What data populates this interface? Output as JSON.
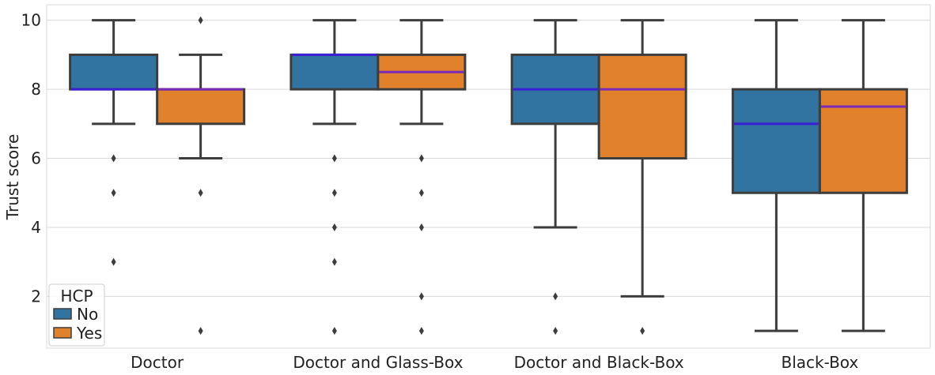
{
  "chart_data": {
    "type": "box",
    "ylabel": "Trust score",
    "xlabel": "",
    "ylim": [
      0.5,
      10.45
    ],
    "yticks": [
      2,
      4,
      6,
      8,
      10
    ],
    "grid": true,
    "categories": [
      "Doctor",
      "Doctor and Glass-Box",
      "Doctor and Black-Box",
      "Black-Box"
    ],
    "legend": {
      "title": "HCP",
      "position": "bottom-left"
    },
    "colors": {
      "No": "#3274a1",
      "Yes": "#e1812c",
      "median": "#3a1fd6",
      "median_yes": "#7a2ab8",
      "edge": "#3d3d3d",
      "grid": "#d9d9d9"
    },
    "series": [
      {
        "name": "No",
        "boxes": [
          {
            "q1": 8,
            "median": 8,
            "q3": 9,
            "whisker_low": 7,
            "whisker_high": 10,
            "outliers": [
              6,
              5,
              3
            ]
          },
          {
            "q1": 8,
            "median": 9,
            "q3": 9,
            "whisker_low": 7,
            "whisker_high": 10,
            "outliers": [
              6,
              5,
              4,
              3,
              1
            ]
          },
          {
            "q1": 7,
            "median": 8,
            "q3": 9,
            "whisker_low": 4,
            "whisker_high": 10,
            "outliers": [
              2,
              1
            ]
          },
          {
            "q1": 5,
            "median": 7,
            "q3": 8,
            "whisker_low": 1,
            "whisker_high": 10,
            "outliers": []
          }
        ]
      },
      {
        "name": "Yes",
        "boxes": [
          {
            "q1": 7,
            "median": 8,
            "q3": 8,
            "whisker_low": 6,
            "whisker_high": 9,
            "outliers": [
              10,
              5,
              1
            ]
          },
          {
            "q1": 8,
            "median": 8.5,
            "q3": 9,
            "whisker_low": 7,
            "whisker_high": 10,
            "outliers": [
              6,
              5,
              4,
              2,
              1
            ]
          },
          {
            "q1": 6,
            "median": 8,
            "q3": 9,
            "whisker_low": 2,
            "whisker_high": 10,
            "outliers": [
              1
            ]
          },
          {
            "q1": 5,
            "median": 7.5,
            "q3": 8,
            "whisker_low": 1,
            "whisker_high": 10,
            "outliers": []
          }
        ]
      }
    ]
  }
}
